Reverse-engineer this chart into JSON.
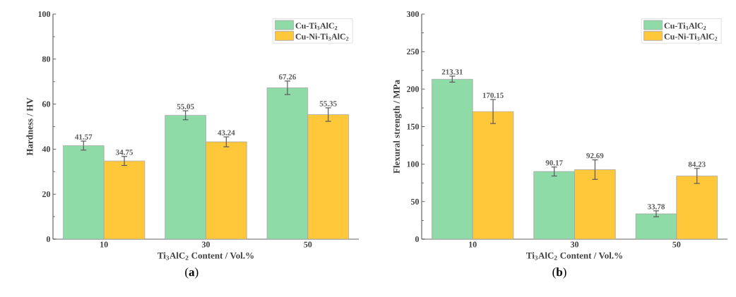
{
  "chart_data": [
    {
      "type": "bar",
      "categories": [
        "10",
        "30",
        "50"
      ],
      "xlabel": "Ti$_{3}$AlC$_{2}$ Content / Vol.%",
      "ylabel": "Hardness / HV",
      "ylim": [
        0,
        100
      ],
      "yticks": [
        0,
        20,
        40,
        60,
        80,
        100
      ],
      "legend": "top right",
      "data_labels": true,
      "annotations": [
        "(**a**)"
      ],
      "series": [
        {
          "name": "Cu-Ti$_{3}$AlC$_{2}$",
          "color": "#8fdba8",
          "values": [
            41.57,
            55.05,
            67.26
          ],
          "errors": [
            2,
            2,
            3
          ]
        },
        {
          "name": "Cu-Ni-Ti$_{3}$AlC$_{2}$",
          "color": "#ffc83a",
          "values": [
            34.75,
            43.24,
            55.35
          ],
          "errors": [
            2,
            2.2,
            3
          ]
        }
      ]
    },
    {
      "type": "bar",
      "categories": [
        "10",
        "30",
        "50"
      ],
      "xlabel": "Ti$_{3}$AlC$_{2}$ Content / Vol.%",
      "ylabel": "Flexural strength / MPa",
      "ylim": [
        0,
        300
      ],
      "yticks": [
        0,
        50,
        100,
        150,
        200,
        250,
        300
      ],
      "legend": "top right",
      "data_labels": true,
      "annotations": [
        "(**b**)"
      ],
      "series": [
        {
          "name": "Cu-Ti$_{3}$AlC$_{2}$",
          "color": "#8fdba8",
          "values": [
            213.31,
            90.17,
            33.78
          ],
          "errors": [
            4,
            6,
            4
          ]
        },
        {
          "name": "Cu-Ni-Ti$_{3}$AlC$_{2}$",
          "color": "#ffc83a",
          "values": [
            170.15,
            92.69,
            84.23
          ],
          "errors": [
            16,
            13,
            10
          ]
        }
      ]
    }
  ]
}
